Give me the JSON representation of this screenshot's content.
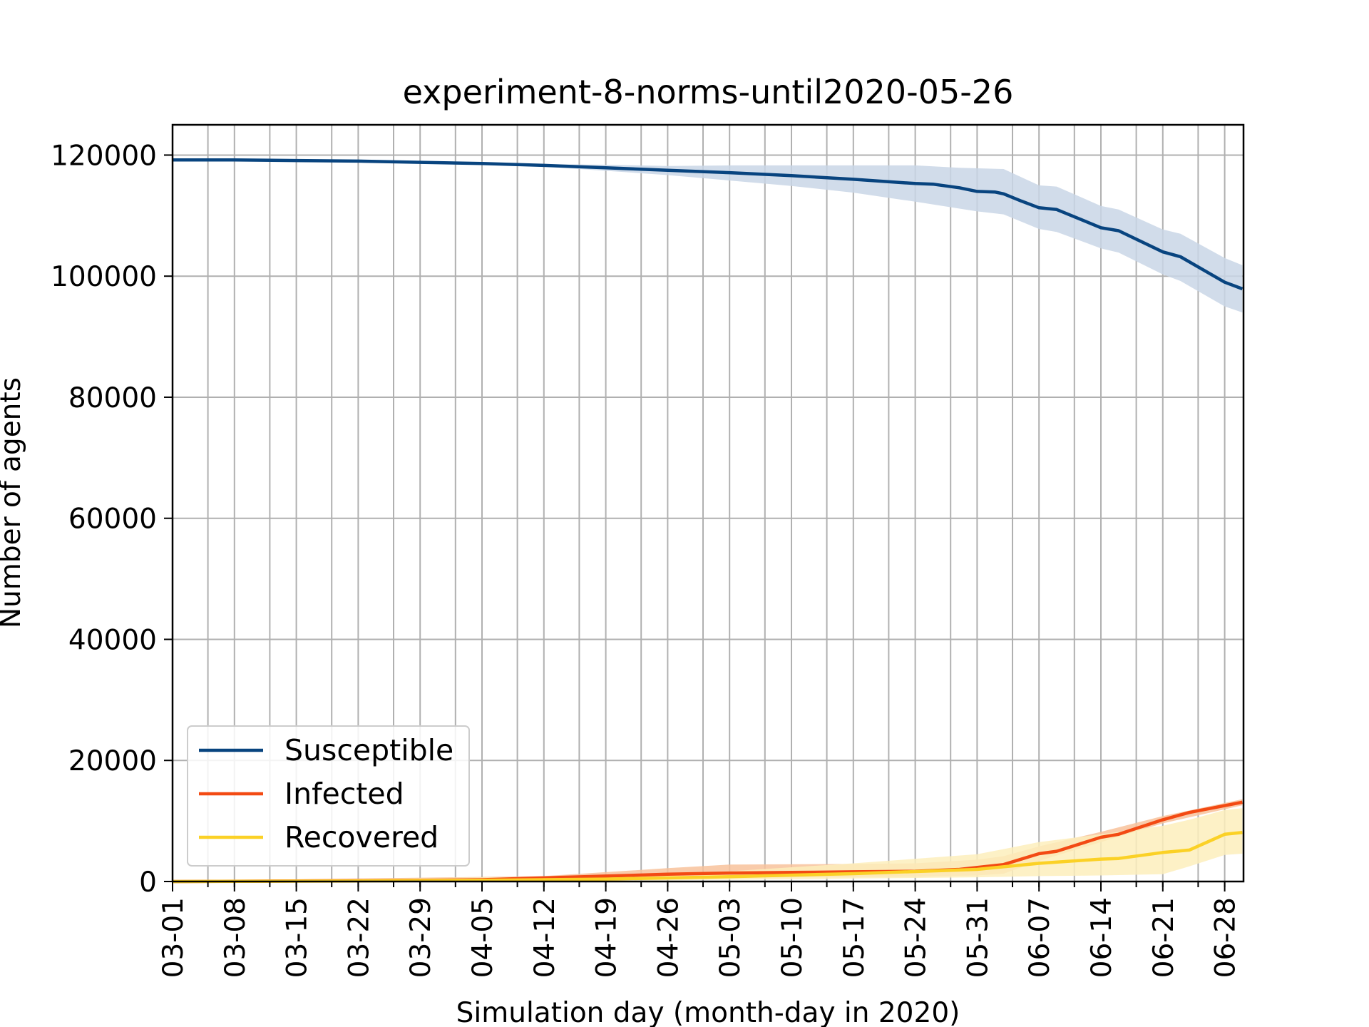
{
  "chart_data": {
    "type": "line",
    "title": "experiment-8-norms-until2020-05-26",
    "xlabel": "Simulation day (month-day in 2020)",
    "ylabel": "Number of agents",
    "x_start": "2020-03-01",
    "x_end": "2020-06-30",
    "xlim": [
      "2020-03-01",
      "2020-07-01"
    ],
    "ylim": [
      0,
      125000
    ],
    "yticks": [
      0,
      20000,
      40000,
      60000,
      80000,
      100000,
      120000
    ],
    "xticks": [
      {
        "date": "2020-03-01",
        "label": "03-01"
      },
      {
        "date": "2020-03-08",
        "label": "03-08"
      },
      {
        "date": "2020-03-15",
        "label": "03-15"
      },
      {
        "date": "2020-03-22",
        "label": "03-22"
      },
      {
        "date": "2020-03-29",
        "label": "03-29"
      },
      {
        "date": "2020-04-05",
        "label": "04-05"
      },
      {
        "date": "2020-04-12",
        "label": "04-12"
      },
      {
        "date": "2020-04-19",
        "label": "04-19"
      },
      {
        "date": "2020-04-26",
        "label": "04-26"
      },
      {
        "date": "2020-05-03",
        "label": "05-03"
      },
      {
        "date": "2020-05-10",
        "label": "05-10"
      },
      {
        "date": "2020-05-17",
        "label": "05-17"
      },
      {
        "date": "2020-05-24",
        "label": "05-24"
      },
      {
        "date": "2020-05-31",
        "label": "05-31"
      },
      {
        "date": "2020-06-07",
        "label": "06-07"
      },
      {
        "date": "2020-06-14",
        "label": "06-14"
      },
      {
        "date": "2020-06-21",
        "label": "06-21"
      },
      {
        "date": "2020-06-28",
        "label": "06-28"
      }
    ],
    "grid": true,
    "legend_position": "lower-left",
    "series": [
      {
        "name": "Susceptible",
        "color": "#08447f",
        "band_color": "#c9d6e6",
        "points": [
          [
            "2020-03-01",
            119200
          ],
          [
            "2020-03-08",
            119200
          ],
          [
            "2020-03-15",
            119100
          ],
          [
            "2020-03-22",
            119000
          ],
          [
            "2020-03-29",
            118800
          ],
          [
            "2020-04-05",
            118600
          ],
          [
            "2020-04-12",
            118300
          ],
          [
            "2020-04-19",
            117900
          ],
          [
            "2020-04-26",
            117500
          ],
          [
            "2020-05-03",
            117100
          ],
          [
            "2020-05-10",
            116600
          ],
          [
            "2020-05-17",
            116000
          ],
          [
            "2020-05-24",
            115300
          ],
          [
            "2020-05-26",
            115200
          ],
          [
            "2020-05-29",
            114600
          ],
          [
            "2020-05-31",
            114000
          ],
          [
            "2020-06-02",
            113900
          ],
          [
            "2020-06-03",
            113600
          ],
          [
            "2020-06-05",
            112400
          ],
          [
            "2020-06-07",
            111300
          ],
          [
            "2020-06-09",
            111000
          ],
          [
            "2020-06-14",
            108000
          ],
          [
            "2020-06-16",
            107500
          ],
          [
            "2020-06-21",
            104000
          ],
          [
            "2020-06-23",
            103200
          ],
          [
            "2020-06-28",
            99000
          ],
          [
            "2020-06-30",
            97900
          ]
        ],
        "lower": [
          [
            "2020-03-01",
            119100
          ],
          [
            "2020-03-15",
            119000
          ],
          [
            "2020-03-29",
            118700
          ],
          [
            "2020-04-12",
            118100
          ],
          [
            "2020-04-19",
            117400
          ],
          [
            "2020-04-26",
            116700
          ],
          [
            "2020-05-03",
            115800
          ],
          [
            "2020-05-10",
            114900
          ],
          [
            "2020-05-17",
            113800
          ],
          [
            "2020-05-24",
            112300
          ],
          [
            "2020-05-31",
            110700
          ],
          [
            "2020-06-03",
            110200
          ],
          [
            "2020-06-07",
            107800
          ],
          [
            "2020-06-09",
            107300
          ],
          [
            "2020-06-14",
            104600
          ],
          [
            "2020-06-16",
            103900
          ],
          [
            "2020-06-21",
            100300
          ],
          [
            "2020-06-23",
            99200
          ],
          [
            "2020-06-28",
            95000
          ],
          [
            "2020-06-30",
            94000
          ]
        ],
        "upper": [
          [
            "2020-03-01",
            119300
          ],
          [
            "2020-03-15",
            119200
          ],
          [
            "2020-03-29",
            118900
          ],
          [
            "2020-04-12",
            118500
          ],
          [
            "2020-04-19",
            118400
          ],
          [
            "2020-04-26",
            118200
          ],
          [
            "2020-05-03",
            118300
          ],
          [
            "2020-05-10",
            118300
          ],
          [
            "2020-05-17",
            118300
          ],
          [
            "2020-05-24",
            118300
          ],
          [
            "2020-05-29",
            117900
          ],
          [
            "2020-06-03",
            117700
          ],
          [
            "2020-06-07",
            115000
          ],
          [
            "2020-06-09",
            114800
          ],
          [
            "2020-06-14",
            111600
          ],
          [
            "2020-06-16",
            111000
          ],
          [
            "2020-06-21",
            107700
          ],
          [
            "2020-06-23",
            107000
          ],
          [
            "2020-06-28",
            103000
          ],
          [
            "2020-06-30",
            101800
          ]
        ]
      },
      {
        "name": "Infected",
        "color": "#f34a13",
        "band_color": "#f8c29b",
        "points": [
          [
            "2020-03-01",
            0
          ],
          [
            "2020-03-15",
            100
          ],
          [
            "2020-03-29",
            200
          ],
          [
            "2020-04-05",
            300
          ],
          [
            "2020-04-12",
            600
          ],
          [
            "2020-04-19",
            900
          ],
          [
            "2020-04-26",
            1200
          ],
          [
            "2020-05-03",
            1400
          ],
          [
            "2020-05-10",
            1500
          ],
          [
            "2020-05-17",
            1600
          ],
          [
            "2020-05-24",
            1700
          ],
          [
            "2020-05-29",
            2000
          ],
          [
            "2020-06-03",
            2800
          ],
          [
            "2020-06-07",
            4600
          ],
          [
            "2020-06-09",
            5000
          ],
          [
            "2020-06-14",
            7300
          ],
          [
            "2020-06-16",
            7800
          ],
          [
            "2020-06-21",
            10200
          ],
          [
            "2020-06-23",
            11000
          ],
          [
            "2020-06-24",
            11400
          ],
          [
            "2020-06-30",
            13100
          ]
        ],
        "lower": [
          [
            "2020-03-01",
            0
          ],
          [
            "2020-04-12",
            300
          ],
          [
            "2020-04-26",
            500
          ],
          [
            "2020-05-10",
            700
          ],
          [
            "2020-05-24",
            800
          ],
          [
            "2020-05-31",
            1000
          ],
          [
            "2020-06-03",
            1300
          ],
          [
            "2020-06-07",
            3400
          ],
          [
            "2020-06-14",
            6500
          ],
          [
            "2020-06-21",
            9600
          ],
          [
            "2020-06-30",
            12600
          ]
        ],
        "upper": [
          [
            "2020-03-01",
            100
          ],
          [
            "2020-04-12",
            900
          ],
          [
            "2020-04-26",
            2200
          ],
          [
            "2020-05-03",
            2800
          ],
          [
            "2020-05-17",
            2900
          ],
          [
            "2020-05-24",
            3000
          ],
          [
            "2020-05-31",
            3600
          ],
          [
            "2020-06-03",
            4200
          ],
          [
            "2020-06-07",
            5800
          ],
          [
            "2020-06-14",
            8200
          ],
          [
            "2020-06-21",
            10800
          ],
          [
            "2020-06-30",
            13600
          ]
        ]
      },
      {
        "name": "Recovered",
        "color": "#fbd126",
        "band_color": "#fdeebc",
        "points": [
          [
            "2020-03-01",
            0
          ],
          [
            "2020-03-22",
            100
          ],
          [
            "2020-04-05",
            200
          ],
          [
            "2020-04-19",
            400
          ],
          [
            "2020-05-03",
            800
          ],
          [
            "2020-05-17",
            1300
          ],
          [
            "2020-05-31",
            2000
          ],
          [
            "2020-06-07",
            3000
          ],
          [
            "2020-06-14",
            3700
          ],
          [
            "2020-06-16",
            3800
          ],
          [
            "2020-06-21",
            4800
          ],
          [
            "2020-06-24",
            5200
          ],
          [
            "2020-06-28",
            7800
          ],
          [
            "2020-06-30",
            8100
          ]
        ],
        "lower": [
          [
            "2020-03-01",
            0
          ],
          [
            "2020-04-19",
            100
          ],
          [
            "2020-05-03",
            300
          ],
          [
            "2020-05-17",
            500
          ],
          [
            "2020-05-31",
            700
          ],
          [
            "2020-06-07",
            900
          ],
          [
            "2020-06-14",
            1000
          ],
          [
            "2020-06-21",
            1200
          ],
          [
            "2020-06-24",
            2500
          ],
          [
            "2020-06-28",
            4400
          ],
          [
            "2020-06-30",
            4600
          ]
        ],
        "upper": [
          [
            "2020-03-01",
            100
          ],
          [
            "2020-04-19",
            900
          ],
          [
            "2020-05-03",
            1700
          ],
          [
            "2020-05-17",
            3000
          ],
          [
            "2020-05-31",
            4500
          ],
          [
            "2020-06-07",
            6500
          ],
          [
            "2020-06-14",
            7800
          ],
          [
            "2020-06-21",
            9200
          ],
          [
            "2020-06-24",
            10200
          ],
          [
            "2020-06-28",
            11800
          ],
          [
            "2020-06-30",
            12100
          ]
        ]
      }
    ]
  }
}
